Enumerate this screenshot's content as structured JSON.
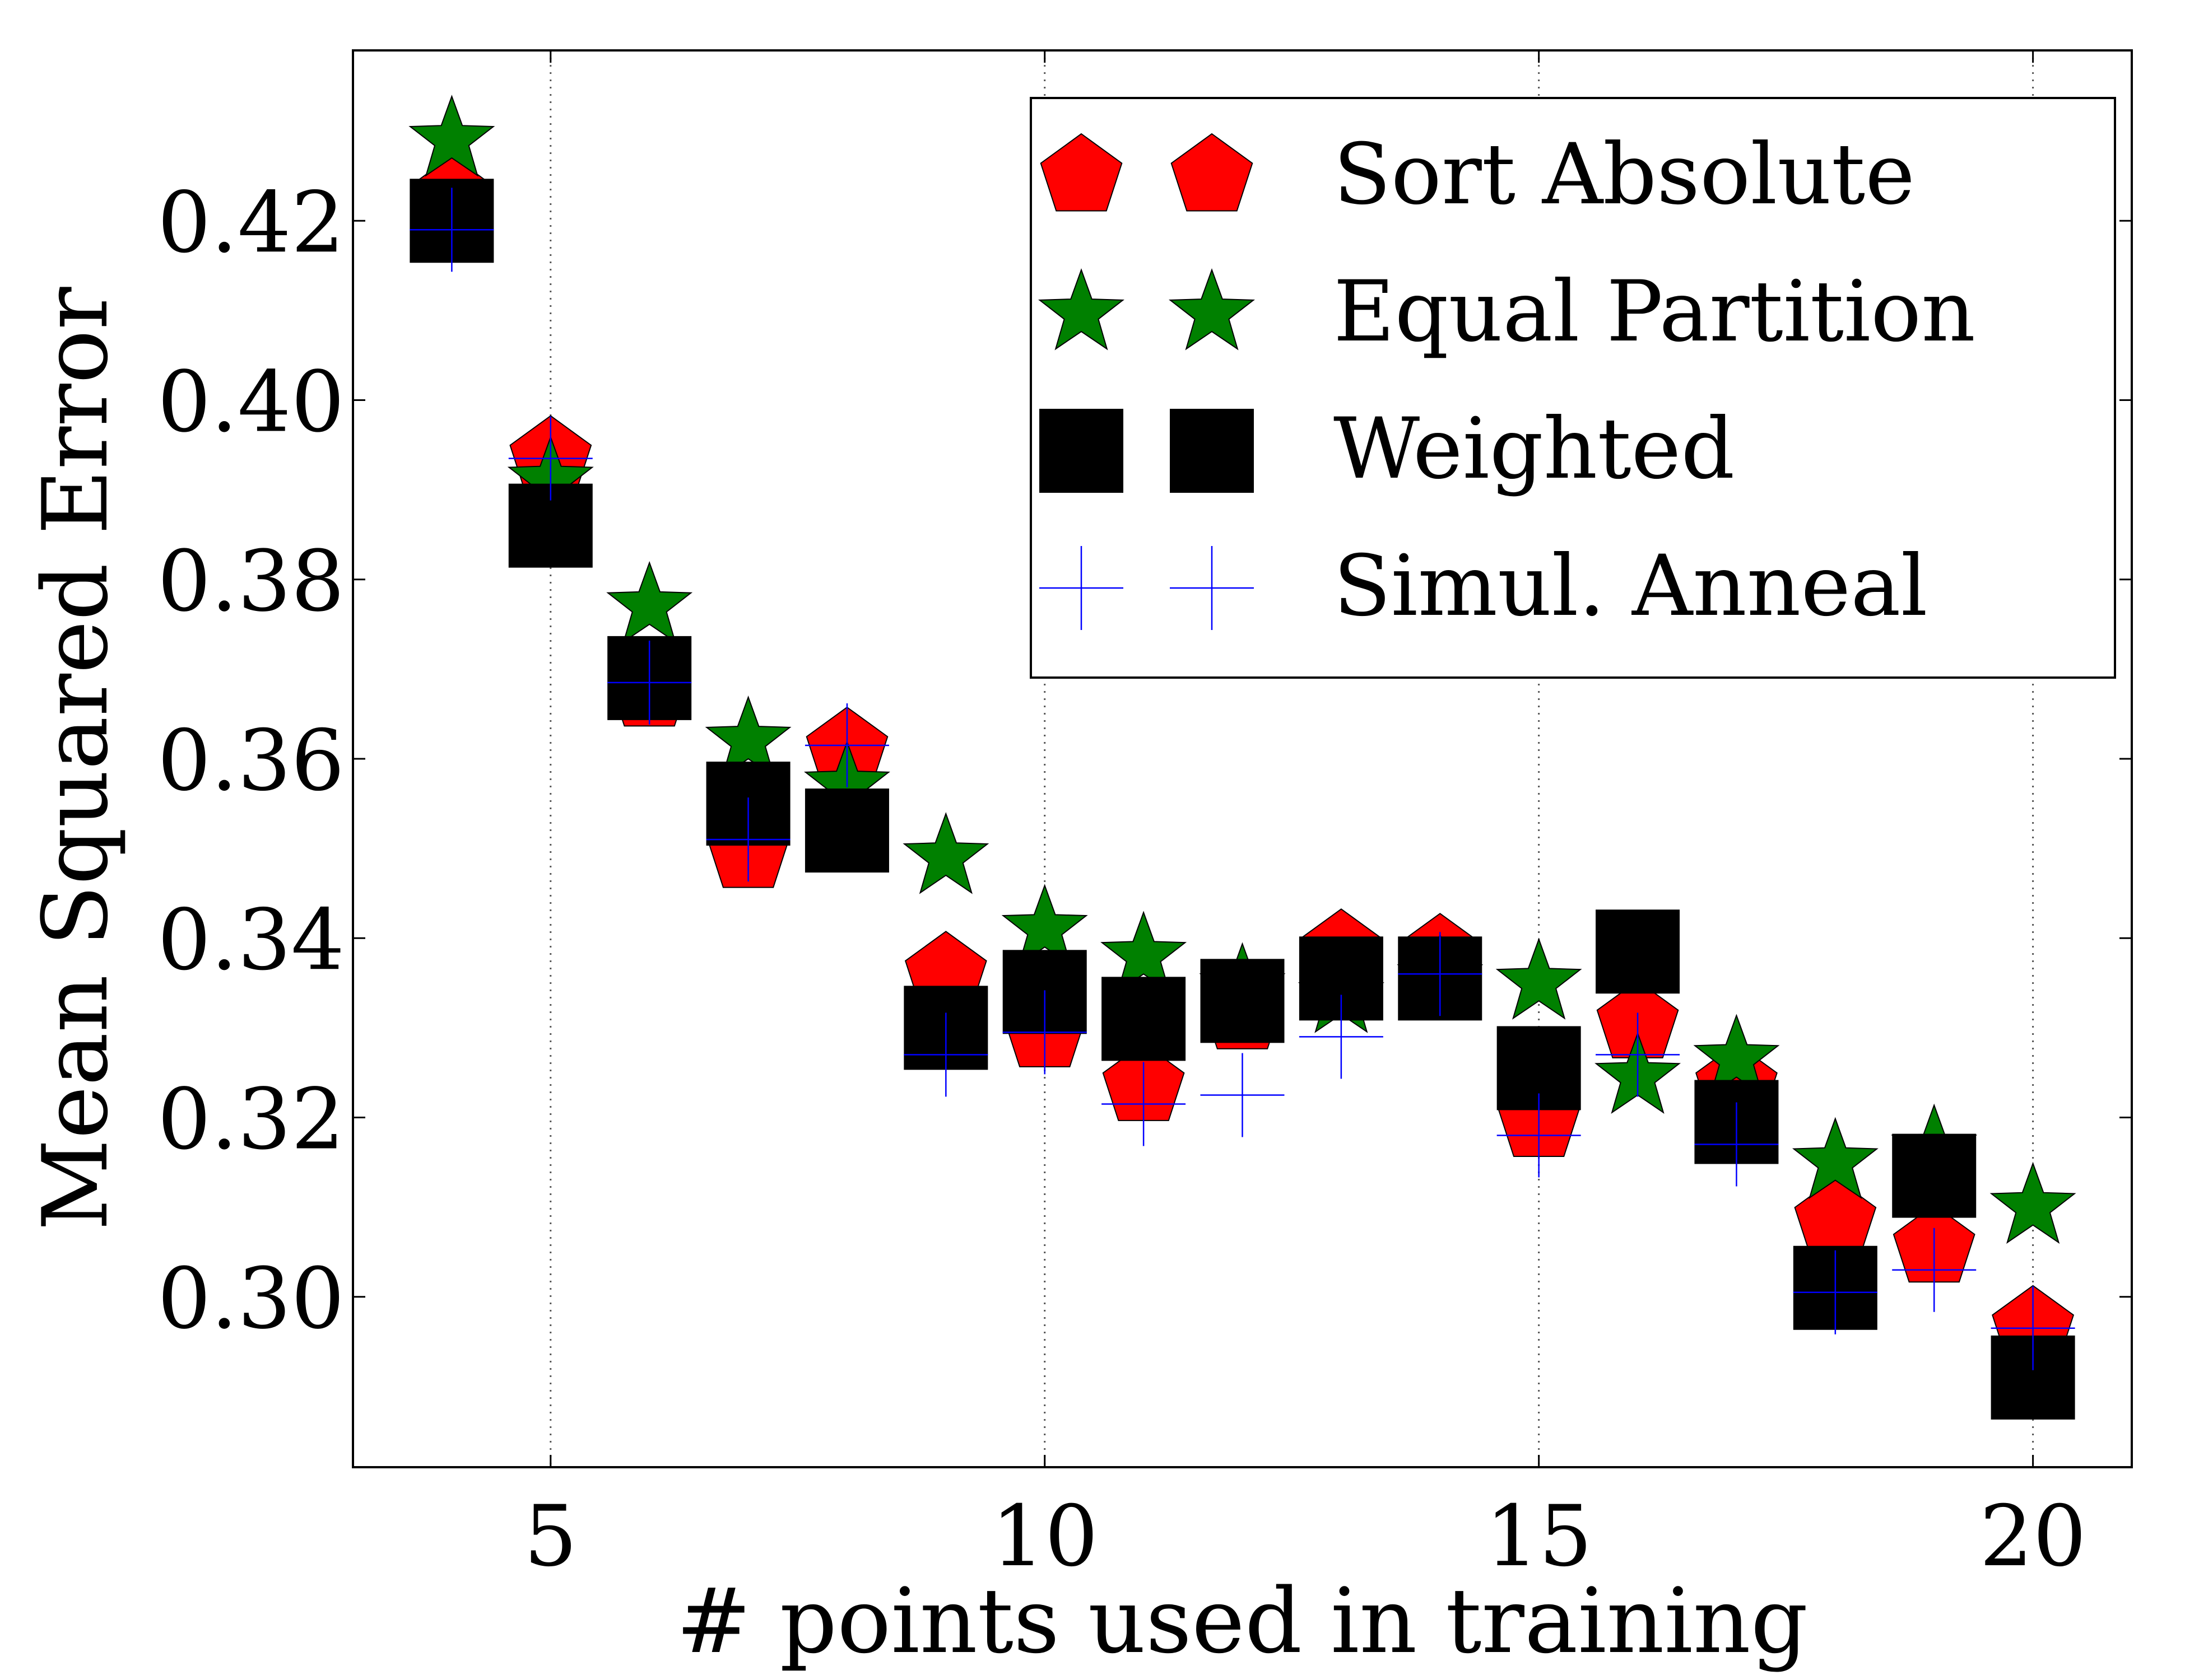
{
  "chart_data": {
    "type": "scatter",
    "title": "",
    "xlabel": "# points used in training",
    "ylabel": "Mean Squared Error",
    "xlim": [
      3,
      21
    ],
    "ylim": [
      0.281,
      0.439
    ],
    "xticks": [
      5,
      10,
      15,
      20
    ],
    "xtick_labels": [
      "5",
      "10",
      "15",
      "20"
    ],
    "yticks": [
      0.3,
      0.32,
      0.34,
      0.36,
      0.38,
      0.4,
      0.42
    ],
    "ytick_labels": [
      "0.30",
      "0.32",
      "0.34",
      "0.36",
      "0.38",
      "0.40",
      "0.42"
    ],
    "grid": "vertical dotted lines at x ticks",
    "legend_position": "top-right",
    "x": [
      4,
      5,
      6,
      7,
      8,
      9,
      10,
      11,
      12,
      13,
      14,
      15,
      16,
      17,
      18,
      19,
      20
    ],
    "series": [
      {
        "name": "Sort Absolute",
        "marker": "pentagon",
        "color": "#ff0000",
        "values": [
          0.4225,
          0.3935,
          0.3675,
          0.3495,
          0.361,
          0.336,
          0.3295,
          0.3235,
          0.3315,
          0.3385,
          0.338,
          0.3195,
          0.3305,
          0.3235,
          0.3085,
          0.3055,
          0.2965
        ]
      },
      {
        "name": "Equal Partition",
        "marker": "star",
        "color": "#008000",
        "values": [
          0.429,
          0.391,
          0.377,
          0.362,
          0.357,
          0.349,
          0.341,
          0.338,
          0.3345,
          0.3335,
          0.3355,
          0.335,
          0.3245,
          0.3265,
          0.315,
          0.3165,
          0.31
        ]
      },
      {
        "name": "Weighted",
        "marker": "square",
        "color": "#000000",
        "values": [
          0.42,
          0.386,
          0.369,
          0.355,
          0.352,
          0.33,
          0.334,
          0.331,
          0.333,
          0.3355,
          0.3355,
          0.3255,
          0.3385,
          0.3195,
          0.301,
          0.3135,
          0.291
        ]
      },
      {
        "name": "Simul. Anneal",
        "marker": "plus",
        "color": "#0000ff",
        "values": [
          0.419,
          0.3935,
          0.3685,
          0.351,
          0.3615,
          0.327,
          0.3295,
          0.3215,
          0.3225,
          0.329,
          0.336,
          0.318,
          0.327,
          0.317,
          0.3005,
          0.303,
          0.2965
        ]
      }
    ]
  }
}
